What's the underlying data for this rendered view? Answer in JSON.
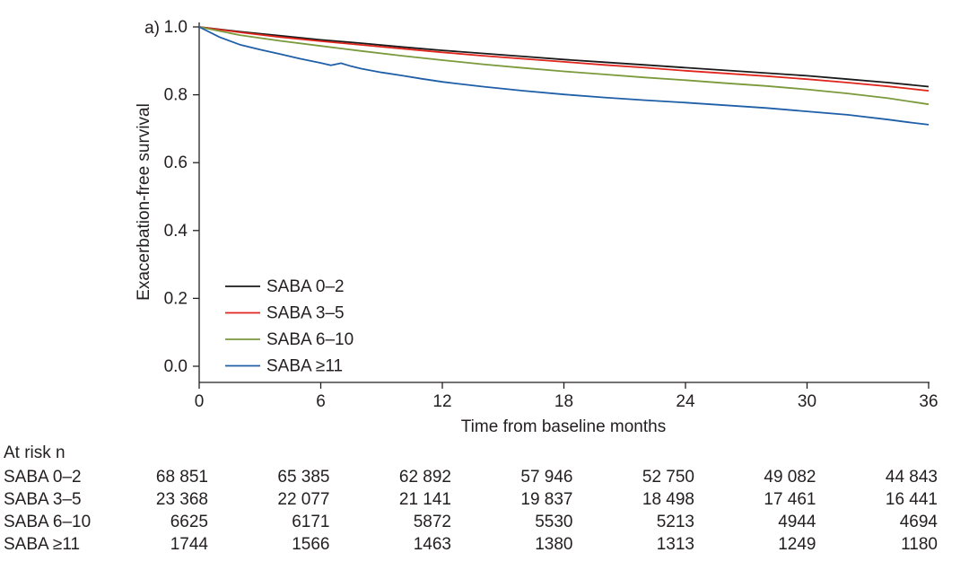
{
  "figure": {
    "panel_label": "a)"
  },
  "chart_data": {
    "type": "line",
    "chart_kind": "kaplan-meier-survival",
    "title": "",
    "xlabel": "Time from baseline months",
    "ylabel": "Exacerbation-free survival",
    "xlim": [
      0,
      36
    ],
    "ylim": [
      0.0,
      1.0
    ],
    "xticks": [
      0,
      6,
      12,
      18,
      24,
      30,
      36
    ],
    "yticks": [
      0.0,
      0.2,
      0.4,
      0.6,
      0.8,
      1.0
    ],
    "grid": false,
    "axis_color": "#231f20",
    "legend_position": "inside-lower-left",
    "series": [
      {
        "name": "SABA 0–2",
        "color": "#1a1a1a",
        "x": [
          0,
          2,
          4,
          6,
          8,
          10,
          12,
          14,
          16,
          18,
          20,
          22,
          24,
          26,
          28,
          30,
          32,
          34,
          36
        ],
        "y": [
          1.0,
          0.986,
          0.974,
          0.962,
          0.952,
          0.941,
          0.931,
          0.922,
          0.913,
          0.904,
          0.896,
          0.888,
          0.88,
          0.872,
          0.864,
          0.856,
          0.846,
          0.836,
          0.824
        ]
      },
      {
        "name": "SABA 3–5",
        "color": "#e0251c",
        "x": [
          0,
          2,
          4,
          6,
          8,
          10,
          12,
          14,
          16,
          18,
          20,
          22,
          24,
          26,
          28,
          30,
          32,
          34,
          36
        ],
        "y": [
          1.0,
          0.984,
          0.97,
          0.958,
          0.947,
          0.936,
          0.925,
          0.915,
          0.906,
          0.897,
          0.888,
          0.88,
          0.871,
          0.863,
          0.855,
          0.846,
          0.836,
          0.825,
          0.812
        ]
      },
      {
        "name": "SABA 6–10",
        "color": "#7a9a3b",
        "x": [
          0,
          2,
          4,
          6,
          8,
          10,
          12,
          14,
          16,
          18,
          20,
          22,
          24,
          26,
          28,
          30,
          32,
          34,
          36
        ],
        "y": [
          1.0,
          0.976,
          0.959,
          0.944,
          0.929,
          0.915,
          0.902,
          0.89,
          0.879,
          0.869,
          0.86,
          0.851,
          0.843,
          0.834,
          0.826,
          0.816,
          0.804,
          0.79,
          0.772
        ]
      },
      {
        "name": "SABA ≥11",
        "color": "#1f5fa8",
        "x": [
          0,
          1,
          2,
          3,
          4,
          5,
          6,
          6.5,
          7,
          7.5,
          8,
          9,
          10,
          11,
          12,
          13,
          14,
          16,
          18,
          20,
          22,
          24,
          26,
          28,
          30,
          32,
          34,
          35,
          36
        ],
        "y": [
          1.0,
          0.97,
          0.948,
          0.933,
          0.92,
          0.906,
          0.894,
          0.887,
          0.893,
          0.884,
          0.877,
          0.866,
          0.857,
          0.847,
          0.838,
          0.831,
          0.824,
          0.812,
          0.801,
          0.792,
          0.784,
          0.777,
          0.769,
          0.761,
          0.751,
          0.741,
          0.727,
          0.719,
          0.712
        ]
      }
    ],
    "at_risk": {
      "header": "At risk n",
      "timepoints": [
        0,
        6,
        12,
        18,
        24,
        30,
        36
      ],
      "rows": [
        {
          "label": "SABA 0–2",
          "values": [
            "68 851",
            "65 385",
            "62 892",
            "57 946",
            "52 750",
            "49 082",
            "44 843"
          ]
        },
        {
          "label": "SABA 3–5",
          "values": [
            "23 368",
            "22 077",
            "21 141",
            "19 837",
            "18 498",
            "17 461",
            "16 441"
          ]
        },
        {
          "label": "SABA 6–10",
          "values": [
            "6625",
            "6171",
            "5872",
            "5530",
            "5213",
            "4944",
            "4694"
          ]
        },
        {
          "label": "SABA ≥11",
          "values": [
            "1744",
            "1566",
            "1463",
            "1380",
            "1313",
            "1249",
            "1180"
          ]
        }
      ]
    }
  }
}
